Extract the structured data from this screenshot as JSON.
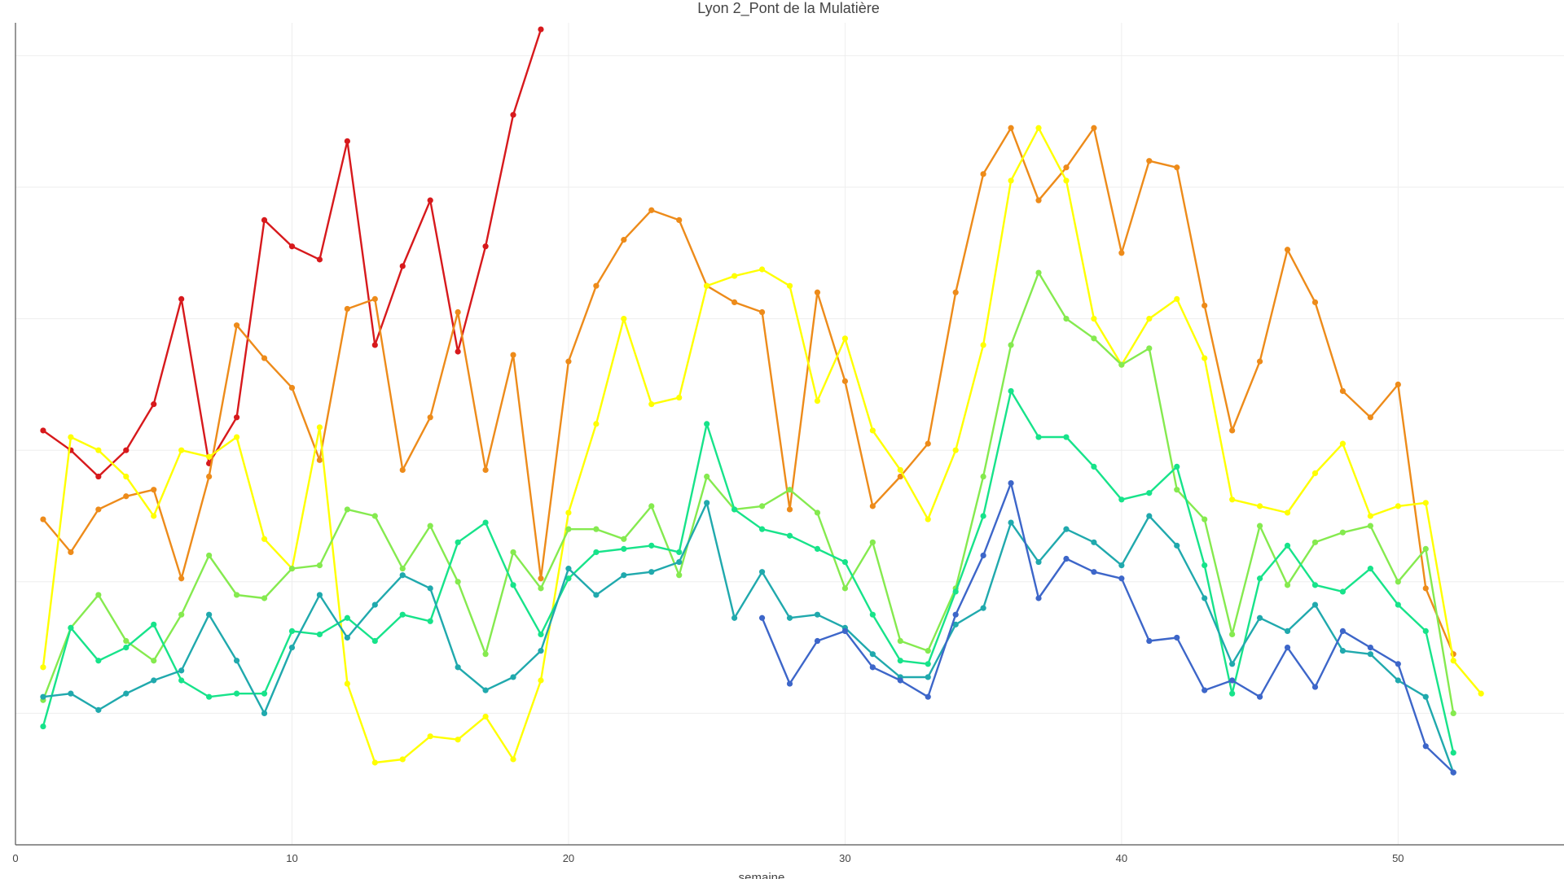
{
  "chart_data": {
    "type": "line",
    "title": "Lyon 2_Pont de la Mulatière",
    "xlabel": "semaine",
    "ylabel": "",
    "xlim": [
      0,
      56
    ],
    "ylim": [
      0,
      125
    ],
    "x_ticks": [
      0,
      10,
      20,
      30,
      40,
      50
    ],
    "y_gridlines": [
      20,
      40,
      60,
      80,
      100,
      120
    ],
    "grid": true,
    "legend": "none",
    "series": [
      {
        "color": "#d7191c",
        "x": [
          1,
          2,
          3,
          4,
          5,
          6,
          7,
          8,
          9,
          10,
          11,
          12,
          13,
          14,
          15,
          16,
          17,
          18,
          19
        ],
        "values": [
          63,
          60,
          56,
          60,
          67,
          83,
          58,
          65,
          95,
          91,
          89,
          107,
          76,
          88,
          98,
          75,
          91,
          111,
          124
        ]
      },
      {
        "color": "#ed8b1a",
        "x": [
          1,
          2,
          3,
          4,
          5,
          6,
          7,
          8,
          9,
          10,
          11,
          12,
          13,
          14,
          15,
          16,
          17,
          18,
          19,
          20,
          21,
          22,
          23,
          24,
          25,
          26,
          27,
          28,
          29,
          30,
          31,
          32,
          33,
          34,
          35,
          36,
          37,
          38,
          39,
          40,
          41,
          42,
          43,
          44,
          45,
          46,
          47,
          48,
          49,
          50,
          51,
          52
        ],
        "values": [
          49.5,
          44.5,
          51,
          53,
          54,
          40.5,
          56,
          79,
          74,
          69.5,
          58.5,
          81.5,
          83,
          57,
          65,
          81,
          57,
          74.5,
          40.5,
          73.5,
          85,
          92,
          96.5,
          95,
          85,
          82.5,
          81,
          51,
          84,
          70.5,
          51.5,
          56,
          61,
          84,
          102,
          109,
          98,
          103,
          109,
          90,
          104,
          103,
          82,
          63,
          73.5,
          90.5,
          82.5,
          69,
          65,
          70,
          39,
          29
        ]
      },
      {
        "color": "#ffff00",
        "x": [
          1,
          2,
          3,
          4,
          5,
          6,
          7,
          8,
          9,
          10,
          11,
          12,
          13,
          14,
          15,
          16,
          17,
          18,
          19,
          20,
          21,
          22,
          23,
          24,
          25,
          26,
          27,
          28,
          29,
          30,
          31,
          32,
          33,
          34,
          35,
          36,
          37,
          38,
          39,
          40,
          41,
          42,
          43,
          44,
          45,
          46,
          47,
          48,
          49,
          50,
          51,
          52,
          53
        ],
        "values": [
          27,
          62,
          60,
          56,
          50,
          60,
          59,
          62,
          46.5,
          42,
          63.5,
          24.5,
          12.5,
          13,
          16.5,
          16,
          19.5,
          13,
          25,
          50.5,
          64,
          80,
          67,
          68,
          85,
          86.5,
          87.5,
          85,
          67.5,
          77,
          63,
          57,
          49.5,
          60,
          76,
          101,
          109,
          101,
          80,
          73,
          80,
          83,
          74,
          52.5,
          51.5,
          50.5,
          56.5,
          61,
          50,
          51.5,
          52,
          28,
          23
        ]
      },
      {
        "color": "#85ea4f",
        "x": [
          1,
          2,
          3,
          4,
          5,
          6,
          7,
          8,
          9,
          10,
          11,
          12,
          13,
          14,
          15,
          16,
          17,
          18,
          19,
          20,
          21,
          22,
          23,
          24,
          25,
          26,
          27,
          28,
          29,
          30,
          31,
          32,
          33,
          34,
          35,
          36,
          37,
          38,
          39,
          40,
          41,
          42,
          43,
          44,
          45,
          46,
          47,
          48,
          49,
          50,
          51,
          52
        ],
        "values": [
          22,
          33,
          38,
          31,
          28,
          35,
          44,
          38,
          37.5,
          42,
          42.5,
          51,
          50,
          42,
          48.5,
          40,
          29,
          44.5,
          39,
          48,
          48,
          46.5,
          51.5,
          41,
          56,
          51,
          51.5,
          54,
          50.5,
          39,
          46,
          31,
          29.5,
          39,
          56,
          76,
          87,
          80,
          77,
          73,
          75.5,
          54,
          49.5,
          32,
          48.5,
          39.5,
          46,
          47.5,
          48.5,
          40,
          45,
          20
        ]
      },
      {
        "color": "#17e38a",
        "x": [
          1,
          2,
          3,
          4,
          5,
          6,
          7,
          8,
          9,
          10,
          11,
          12,
          13,
          14,
          15,
          16,
          17,
          18,
          19,
          20,
          21,
          22,
          23,
          24,
          25,
          26,
          27,
          28,
          29,
          30,
          31,
          32,
          33,
          34,
          35,
          36,
          37,
          38,
          39,
          40,
          41,
          42,
          43,
          44,
          45,
          46,
          47,
          48,
          49,
          50,
          51,
          52
        ],
        "values": [
          18,
          33,
          28,
          30,
          33.5,
          25,
          22.5,
          23,
          23,
          32.5,
          32,
          34.5,
          31,
          35,
          34,
          46,
          49,
          39.5,
          32,
          40.5,
          44.5,
          45,
          45.5,
          44.5,
          64,
          51,
          48,
          47,
          45,
          43,
          35,
          28,
          27.5,
          38.5,
          50,
          69,
          62,
          62,
          57.5,
          52.5,
          53.5,
          57.5,
          42.5,
          23,
          40.5,
          45.5,
          39.5,
          38.5,
          42,
          36.5,
          32.5,
          14
        ]
      },
      {
        "color": "#20a9ad",
        "x": [
          1,
          2,
          3,
          4,
          5,
          6,
          7,
          8,
          9,
          10,
          11,
          12,
          13,
          14,
          15,
          16,
          17,
          18,
          19,
          20,
          21,
          22,
          23,
          24,
          25,
          26,
          27,
          28,
          29,
          30,
          31,
          32,
          33,
          34,
          35,
          36,
          37,
          38,
          39,
          40,
          41,
          42,
          43,
          44,
          45,
          46,
          47,
          48,
          49,
          50,
          51,
          52
        ],
        "values": [
          22.5,
          23,
          20.5,
          23,
          25,
          26.5,
          35,
          28,
          20,
          30,
          38,
          31.5,
          36.5,
          41,
          39,
          27,
          23.5,
          25.5,
          29.5,
          42,
          38,
          41,
          41.5,
          43,
          52,
          34.5,
          41.5,
          34.5,
          35,
          33,
          29,
          25.5,
          25.5,
          33.5,
          36,
          49,
          43,
          48,
          46,
          42.5,
          50,
          45.5,
          37.5,
          27.5,
          34.5,
          32.5,
          36.5,
          29.5,
          29,
          25,
          22.5,
          11
        ]
      },
      {
        "color": "#3d66c9",
        "x": [
          27,
          28,
          29,
          30,
          31,
          32,
          33,
          34,
          35,
          36,
          37,
          38,
          39,
          40,
          41,
          42,
          43,
          44,
          45,
          46,
          47,
          48,
          49,
          50,
          51,
          52
        ],
        "values": [
          34.5,
          24.5,
          31,
          32.5,
          27,
          25,
          22.5,
          35,
          44,
          55,
          37.5,
          43.5,
          41.5,
          40.5,
          31,
          31.5,
          23.5,
          25,
          22.5,
          30,
          24,
          32.5,
          30,
          27.5,
          15,
          11
        ]
      }
    ]
  }
}
